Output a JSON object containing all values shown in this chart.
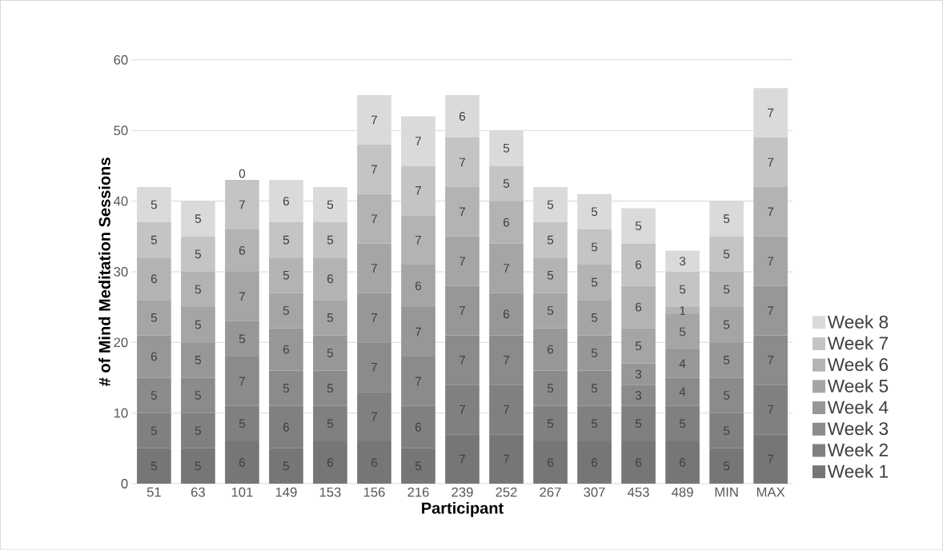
{
  "chart_data": {
    "type": "bar",
    "stacked": true,
    "xlabel": "Participant",
    "ylabel": "# of Mind Meditation Sessions",
    "categories": [
      "51",
      "63",
      "101",
      "149",
      "153",
      "156",
      "216",
      "239",
      "252",
      "267",
      "307",
      "453",
      "489",
      "MIN",
      "MAX"
    ],
    "series": [
      {
        "name": "Week 1",
        "color": "#767676",
        "values": [
          5,
          5,
          6,
          5,
          6,
          6,
          5,
          7,
          7,
          6,
          6,
          6,
          6,
          5,
          7
        ]
      },
      {
        "name": "Week 2",
        "color": "#808080",
        "values": [
          5,
          5,
          5,
          6,
          5,
          7,
          6,
          7,
          7,
          5,
          5,
          5,
          5,
          5,
          7
        ]
      },
      {
        "name": "Week 3",
        "color": "#8b8b8b",
        "values": [
          5,
          5,
          7,
          5,
          5,
          7,
          7,
          7,
          7,
          5,
          5,
          3,
          4,
          5,
          7
        ]
      },
      {
        "name": "Week 4",
        "color": "#979797",
        "values": [
          6,
          5,
          5,
          6,
          5,
          7,
          7,
          7,
          6,
          6,
          5,
          3,
          4,
          5,
          7
        ]
      },
      {
        "name": "Week 5",
        "color": "#a5a5a5",
        "values": [
          5,
          5,
          7,
          5,
          5,
          7,
          6,
          7,
          7,
          5,
          5,
          5,
          5,
          5,
          7
        ]
      },
      {
        "name": "Week 6",
        "color": "#b3b3b3",
        "values": [
          6,
          5,
          6,
          5,
          6,
          7,
          7,
          7,
          6,
          5,
          5,
          6,
          1,
          5,
          7
        ]
      },
      {
        "name": "Week 7",
        "color": "#c4c4c4",
        "values": [
          5,
          5,
          7,
          5,
          5,
          7,
          7,
          7,
          5,
          5,
          5,
          6,
          5,
          5,
          7
        ]
      },
      {
        "name": "Week 8",
        "color": "#dadada",
        "values": [
          5,
          5,
          0,
          6,
          5,
          7,
          7,
          6,
          5,
          5,
          5,
          5,
          3,
          5,
          7
        ]
      }
    ],
    "ylim": [
      0,
      60
    ],
    "yticks": [
      0,
      10,
      20,
      30,
      40,
      50,
      60
    ],
    "grid": "y",
    "legend": "right",
    "data_labels": true
  }
}
